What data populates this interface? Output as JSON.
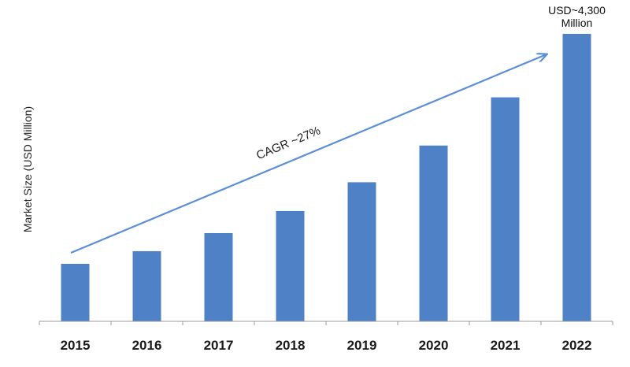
{
  "chart_data": {
    "type": "bar",
    "title": "",
    "xlabel": "",
    "ylabel": "Market Size (USD Million)",
    "categories": [
      "2015",
      "2016",
      "2017",
      "2018",
      "2019",
      "2020",
      "2021",
      "2022"
    ],
    "values": [
      860,
      1050,
      1320,
      1650,
      2080,
      2630,
      3350,
      4300
    ],
    "ylim": [
      0,
      4300
    ],
    "grid": false,
    "legend": "none",
    "bar_color": "#4f81c7",
    "arrow_color": "#5b8fd6",
    "annotations": {
      "last_bar_value": "USD~4,300\nMillion",
      "cagr": "CAGR ~27%"
    }
  }
}
